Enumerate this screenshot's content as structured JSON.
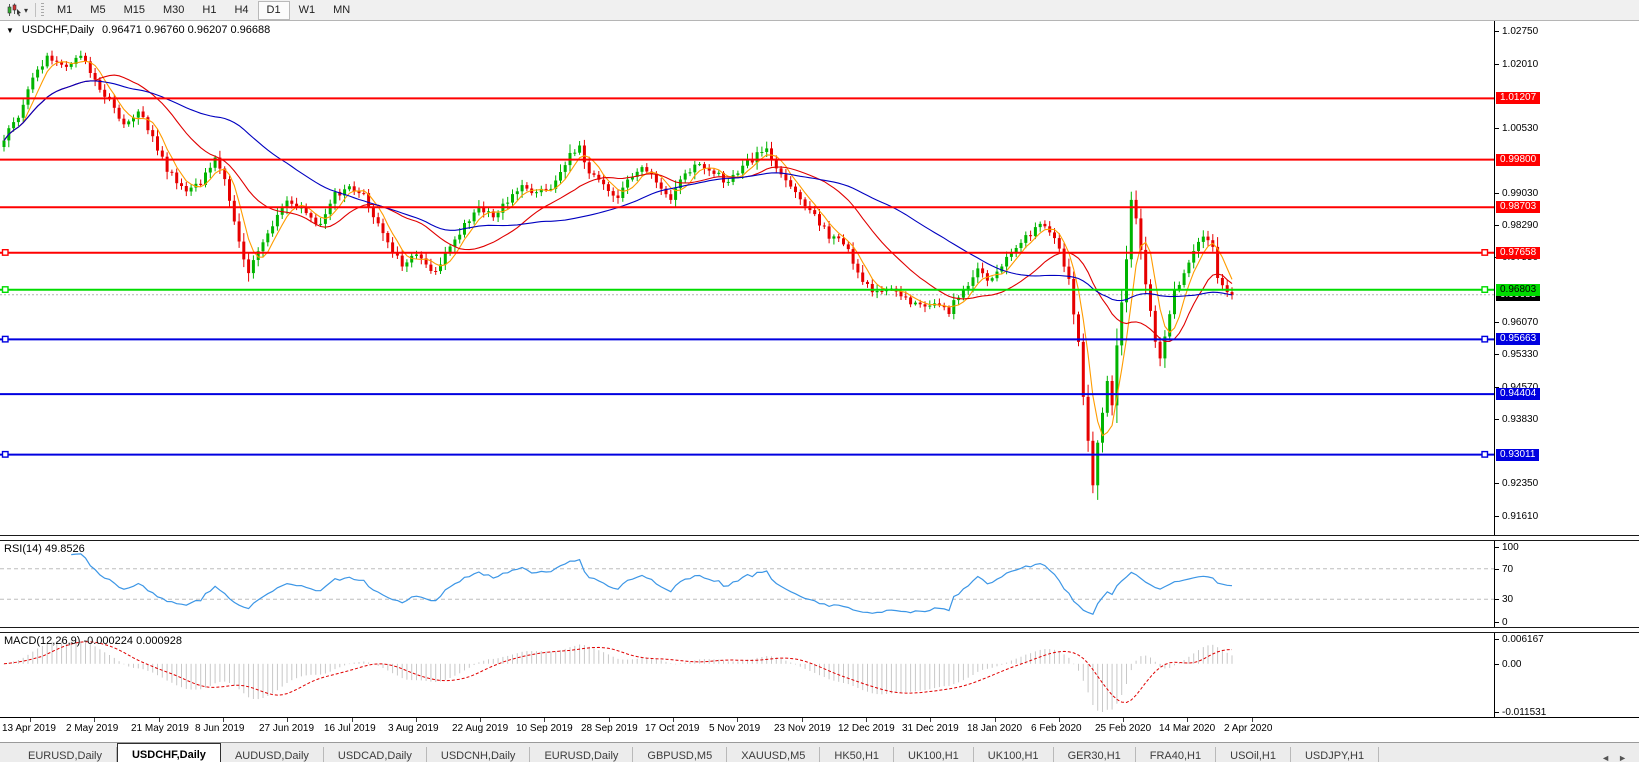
{
  "toolbar": {
    "dropdown_icon": "▾",
    "timeframes": [
      {
        "label": "M1",
        "active": false
      },
      {
        "label": "M5",
        "active": false
      },
      {
        "label": "M15",
        "active": false
      },
      {
        "label": "M30",
        "active": false
      },
      {
        "label": "H1",
        "active": false
      },
      {
        "label": "H4",
        "active": false
      },
      {
        "label": "D1",
        "active": true
      },
      {
        "label": "W1",
        "active": false
      },
      {
        "label": "MN",
        "active": false
      }
    ]
  },
  "chart_header": {
    "collapse_icon": "▼",
    "symbol": "USDCHF,Daily",
    "ohlc": "0.96471 0.96760 0.96207 0.96688"
  },
  "chart_data": {
    "type": "candlestick",
    "symbol": "USDCHF",
    "timeframe": "Daily",
    "open": 0.96471,
    "high": 0.9676,
    "low": 0.96207,
    "close": 0.96688,
    "current_price": 0.96688,
    "price_axis": {
      "top": 1.0285,
      "bottom": 0.913,
      "ticks": [
        1.0275,
        1.0201,
        1.0053,
        0.9903,
        0.9829,
        0.9755,
        0.9607,
        0.9533,
        0.9457,
        0.9383,
        0.9235,
        0.9161
      ]
    },
    "hlines": [
      {
        "price": 1.01207,
        "color": "#ff0000",
        "label": "1.01207",
        "text": "#ffffff",
        "handles": false
      },
      {
        "price": 0.998,
        "color": "#ff0000",
        "label": "0.99800",
        "text": "#ffffff",
        "handles": false
      },
      {
        "price": 0.98703,
        "color": "#ff0000",
        "label": "0.98703",
        "text": "#ffffff",
        "handles": false
      },
      {
        "price": 0.97658,
        "color": "#ff0000",
        "label": "0.97658",
        "text": "#ffffff",
        "handles": true
      },
      {
        "price": 0.96803,
        "color": "#00dc00",
        "label": "0.96803",
        "text": "#000000",
        "handles": true
      },
      {
        "price": 0.95663,
        "color": "#0000e0",
        "label": "0.95663",
        "text": "#ffffff",
        "handles": true
      },
      {
        "price": 0.94404,
        "color": "#0000e0",
        "label": "0.94404",
        "text": "#ffffff",
        "handles": false
      },
      {
        "price": 0.93011,
        "color": "#0000e0",
        "label": "0.93011",
        "text": "#ffffff",
        "handles": true
      }
    ],
    "candles": {
      "count": 257,
      "up_color": "#00b400",
      "down_color": "#e60000",
      "wiggle": 0.0011,
      "anchors": [
        [
          0,
          1.003
        ],
        [
          3,
          1.008
        ],
        [
          6,
          1.017
        ],
        [
          9,
          1.0215
        ],
        [
          13,
          1.0195
        ],
        [
          16,
          1.022
        ],
        [
          19,
          1.016
        ],
        [
          22,
          1.012
        ],
        [
          25,
          1.006
        ],
        [
          28,
          1.009
        ],
        [
          31,
          1.003
        ],
        [
          34,
          0.996
        ],
        [
          38,
          0.9905
        ],
        [
          41,
          0.993
        ],
        [
          44,
          0.9985
        ],
        [
          46,
          0.994
        ],
        [
          49,
          0.979
        ],
        [
          51,
          0.972
        ],
        [
          53,
          0.9765
        ],
        [
          56,
          0.983
        ],
        [
          59,
          0.989
        ],
        [
          63,
          0.986
        ],
        [
          66,
          0.983
        ],
        [
          69,
          0.99
        ],
        [
          72,
          0.992
        ],
        [
          75,
          0.9895
        ],
        [
          77,
          0.985
        ],
        [
          80,
          0.979
        ],
        [
          83,
          0.974
        ],
        [
          86,
          0.9765
        ],
        [
          90,
          0.972
        ],
        [
          93,
          0.978
        ],
        [
          96,
          0.983
        ],
        [
          99,
          0.987
        ],
        [
          102,
          0.985
        ],
        [
          105,
          0.989
        ],
        [
          108,
          0.992
        ],
        [
          111,
          0.99
        ],
        [
          115,
          0.993
        ],
        [
          118,
          0.999
        ],
        [
          120,
          1.0005
        ],
        [
          122,
          0.995
        ],
        [
          125,
          0.992
        ],
        [
          128,
          0.989
        ],
        [
          130,
          0.993
        ],
        [
          133,
          0.996
        ],
        [
          136,
          0.993
        ],
        [
          139,
          0.989
        ],
        [
          142,
          0.995
        ],
        [
          145,
          0.997
        ],
        [
          148,
          0.995
        ],
        [
          151,
          0.993
        ],
        [
          154,
          0.996
        ],
        [
          157,
          0.9995
        ],
        [
          159,
          1.0
        ],
        [
          163,
          0.993
        ],
        [
          166,
          0.989
        ],
        [
          169,
          0.985
        ],
        [
          172,
          0.98
        ],
        [
          175,
          0.979
        ],
        [
          178,
          0.972
        ],
        [
          181,
          0.967
        ],
        [
          184,
          0.969
        ],
        [
          188,
          0.966
        ],
        [
          191,
          0.964
        ],
        [
          194,
          0.965
        ],
        [
          197,
          0.963
        ],
        [
          200,
          0.968
        ],
        [
          203,
          0.972
        ],
        [
          206,
          0.97
        ],
        [
          209,
          0.976
        ],
        [
          213,
          0.98
        ],
        [
          216,
          0.984
        ],
        [
          218,
          0.981
        ],
        [
          220,
          0.978
        ],
        [
          222,
          0.97
        ],
        [
          224,
          0.956
        ],
        [
          225,
          0.943
        ],
        [
          227,
          0.923
        ],
        [
          228,
          0.933
        ],
        [
          230,
          0.947
        ],
        [
          231,
          0.942
        ],
        [
          232,
          0.956
        ],
        [
          234,
          0.975
        ],
        [
          235,
          0.989
        ],
        [
          236,
          0.985
        ],
        [
          238,
          0.97
        ],
        [
          240,
          0.956
        ],
        [
          241,
          0.953
        ],
        [
          243,
          0.962
        ],
        [
          244,
          0.968
        ],
        [
          246,
          0.972
        ],
        [
          248,
          0.977
        ],
        [
          250,
          0.98
        ],
        [
          252,
          0.978
        ],
        [
          253,
          0.97
        ],
        [
          255,
          0.967
        ],
        [
          256,
          0.96688
        ]
      ]
    },
    "moving_averages": [
      {
        "period": 5,
        "color": "#ff9c00"
      },
      {
        "period": 20,
        "color": "#e00000"
      },
      {
        "period": 45,
        "color": "#0000c0"
      }
    ],
    "rsi": {
      "label": "RSI(14) 49.8526",
      "period": 14,
      "color": "#3c96e6",
      "axis_ticks": [
        100,
        70,
        30,
        0
      ],
      "dashed_levels": [
        70,
        30
      ]
    },
    "macd": {
      "label": "MACD(12,26,9) -0.000224 0.000928",
      "fast": 12,
      "slow": 26,
      "signal": 9,
      "hist_color": "#c8c8c8",
      "signal_color": "#e00000",
      "axis_ticks": [
        {
          "v": 0.006167,
          "t": "0.006167"
        },
        {
          "v": 0,
          "t": "0.00"
        },
        {
          "v": -0.011531,
          "t": "-0.011531"
        }
      ]
    },
    "dates": [
      "13 Apr 2019",
      "2 May 2019",
      "21 May 2019",
      "8 Jun 2019",
      "27 Jun 2019",
      "16 Jul 2019",
      "3 Aug 2019",
      "22 Aug 2019",
      "10 Sep 2019",
      "28 Sep 2019",
      "17 Oct 2019",
      "5 Nov 2019",
      "23 Nov 2019",
      "12 Dec 2019",
      "31 Dec 2019",
      "18 Jan 2020",
      "6 Feb 2020",
      "25 Feb 2020",
      "14 Mar 2020",
      "2 Apr 2020"
    ]
  },
  "tab_bar": {
    "active_index": 1,
    "nav_left": "◄",
    "nav_right": "►",
    "tabs": [
      "EURUSD,Daily",
      "USDCHF,Daily",
      "AUDUSD,Daily",
      "USDCAD,Daily",
      "USDCNH,Daily",
      "EURUSD,Daily",
      "GBPUSD,M5",
      "XAUUSD,M5",
      "HK50,H1",
      "UK100,H1",
      "UK100,H1",
      "GER30,H1",
      "FRA40,H1",
      "USOil,H1",
      "USDJPY,H1"
    ]
  }
}
